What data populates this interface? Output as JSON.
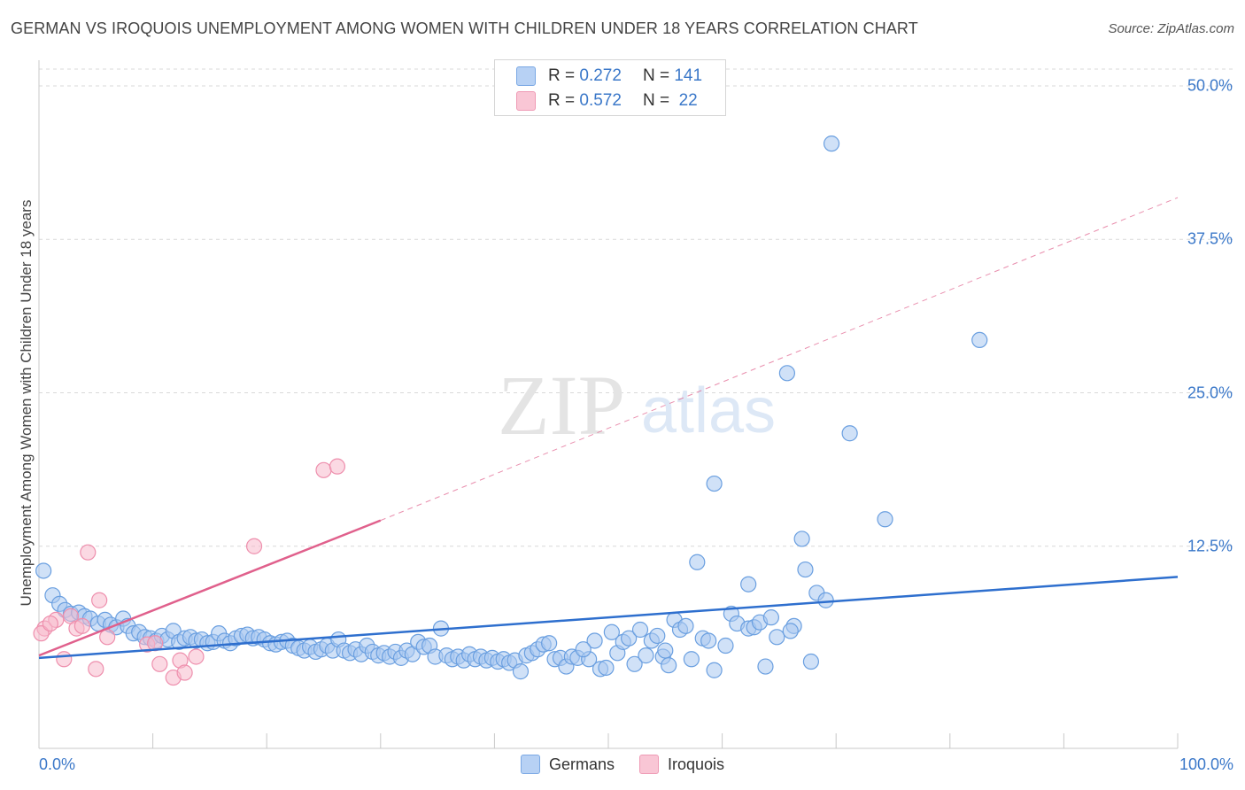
{
  "title": "GERMAN VS IROQUOIS UNEMPLOYMENT AMONG WOMEN WITH CHILDREN UNDER 18 YEARS CORRELATION CHART",
  "source": "Source: ZipAtlas.com",
  "watermark": {
    "zip": "ZIP",
    "atlas": "atlas"
  },
  "colors": {
    "germans_fill": "#a9c8f0",
    "germans_stroke": "#6a9fe0",
    "germans_line": "#2e6fce",
    "iroquois_fill": "#f7b9cc",
    "iroquois_stroke": "#ee8fad",
    "iroquois_line": "#e0608c",
    "grid": "#d9d9d9",
    "axis_text": "#3b78c9"
  },
  "legend": {
    "rows": [
      {
        "r_label": "R =",
        "r_value": "0.272",
        "n_label": "N =",
        "n_value": "141"
      },
      {
        "r_label": "R =",
        "r_value": "0.572",
        "n_label": "N =",
        "n_value": "22"
      }
    ]
  },
  "bottom_legend": [
    "Germans",
    "Iroquois"
  ],
  "chart_data": {
    "type": "scatter",
    "title": "GERMAN VS IROQUOIS UNEMPLOYMENT AMONG WOMEN WITH CHILDREN UNDER 18 YEARS CORRELATION CHART",
    "xlabel": "",
    "ylabel": "Unemployment Among Women with Children Under 18 years",
    "xlim": [
      0,
      100
    ],
    "ylim": [
      0,
      50
    ],
    "x_tick_labels": [
      "0.0%",
      "100.0%"
    ],
    "y_ticks": [
      12.5,
      25.0,
      37.5,
      50.0
    ],
    "y_tick_labels": [
      "12.5%",
      "25.0%",
      "37.5%",
      "50.0%"
    ],
    "grid": "horizontal dashed",
    "legend_position": "top-center",
    "series": [
      {
        "name": "Germans",
        "r": 0.272,
        "n": 141,
        "trend": {
          "x": [
            0,
            100
          ],
          "y": [
            3.4,
            10.0
          ],
          "style": "solid"
        },
        "points": [
          [
            0.4,
            10.5
          ],
          [
            1.2,
            8.5
          ],
          [
            1.8,
            7.8
          ],
          [
            2.3,
            7.3
          ],
          [
            2.8,
            7.0
          ],
          [
            3.5,
            7.1
          ],
          [
            4.0,
            6.8
          ],
          [
            4.5,
            6.6
          ],
          [
            5.2,
            6.2
          ],
          [
            5.8,
            6.5
          ],
          [
            6.3,
            6.1
          ],
          [
            6.8,
            5.9
          ],
          [
            7.4,
            6.6
          ],
          [
            7.8,
            6.0
          ],
          [
            8.3,
            5.4
          ],
          [
            8.8,
            5.5
          ],
          [
            9.3,
            5.1
          ],
          [
            9.8,
            5.0
          ],
          [
            10.3,
            4.8
          ],
          [
            10.8,
            5.2
          ],
          [
            11.3,
            4.9
          ],
          [
            11.8,
            5.6
          ],
          [
            12.3,
            4.7
          ],
          [
            12.8,
            5.0
          ],
          [
            13.3,
            5.1
          ],
          [
            13.8,
            4.8
          ],
          [
            14.3,
            4.9
          ],
          [
            14.8,
            4.6
          ],
          [
            15.3,
            4.7
          ],
          [
            15.8,
            5.4
          ],
          [
            16.3,
            4.8
          ],
          [
            16.8,
            4.6
          ],
          [
            17.3,
            5.0
          ],
          [
            17.8,
            5.2
          ],
          [
            18.3,
            5.3
          ],
          [
            18.8,
            5.0
          ],
          [
            19.3,
            5.1
          ],
          [
            19.8,
            4.9
          ],
          [
            20.3,
            4.6
          ],
          [
            20.8,
            4.5
          ],
          [
            21.3,
            4.7
          ],
          [
            21.8,
            4.8
          ],
          [
            22.3,
            4.4
          ],
          [
            22.8,
            4.2
          ],
          [
            23.3,
            4.0
          ],
          [
            23.8,
            4.3
          ],
          [
            24.3,
            3.9
          ],
          [
            24.8,
            4.1
          ],
          [
            25.3,
            4.4
          ],
          [
            25.8,
            4.0
          ],
          [
            26.3,
            4.9
          ],
          [
            26.8,
            4.0
          ],
          [
            27.3,
            3.8
          ],
          [
            27.8,
            4.1
          ],
          [
            28.3,
            3.7
          ],
          [
            28.8,
            4.4
          ],
          [
            29.3,
            3.9
          ],
          [
            29.8,
            3.6
          ],
          [
            30.3,
            3.8
          ],
          [
            30.8,
            3.5
          ],
          [
            31.3,
            3.9
          ],
          [
            31.8,
            3.4
          ],
          [
            32.3,
            4.0
          ],
          [
            32.8,
            3.7
          ],
          [
            33.3,
            4.7
          ],
          [
            33.8,
            4.3
          ],
          [
            34.3,
            4.4
          ],
          [
            34.8,
            3.5
          ],
          [
            35.3,
            5.8
          ],
          [
            35.8,
            3.6
          ],
          [
            36.3,
            3.3
          ],
          [
            36.8,
            3.5
          ],
          [
            37.3,
            3.2
          ],
          [
            37.8,
            3.7
          ],
          [
            38.3,
            3.3
          ],
          [
            38.8,
            3.5
          ],
          [
            39.3,
            3.2
          ],
          [
            39.8,
            3.4
          ],
          [
            40.3,
            3.1
          ],
          [
            40.8,
            3.3
          ],
          [
            41.3,
            3.0
          ],
          [
            41.8,
            3.2
          ],
          [
            42.3,
            2.3
          ],
          [
            42.8,
            3.6
          ],
          [
            43.3,
            3.8
          ],
          [
            43.8,
            4.1
          ],
          [
            44.3,
            4.5
          ],
          [
            44.8,
            4.6
          ],
          [
            45.3,
            3.3
          ],
          [
            45.8,
            3.4
          ],
          [
            46.3,
            2.7
          ],
          [
            46.8,
            3.5
          ],
          [
            47.3,
            3.4
          ],
          [
            48.3,
            3.3
          ],
          [
            48.8,
            4.8
          ],
          [
            49.3,
            2.5
          ],
          [
            49.8,
            2.6
          ],
          [
            50.3,
            5.5
          ],
          [
            50.8,
            3.8
          ],
          [
            51.3,
            4.7
          ],
          [
            51.8,
            5.0
          ],
          [
            52.3,
            2.9
          ],
          [
            52.8,
            5.7
          ],
          [
            53.3,
            3.6
          ],
          [
            53.8,
            4.8
          ],
          [
            54.3,
            5.2
          ],
          [
            54.8,
            3.5
          ],
          [
            55.3,
            2.8
          ],
          [
            55.8,
            6.5
          ],
          [
            56.3,
            5.7
          ],
          [
            56.8,
            6.0
          ],
          [
            57.3,
            3.3
          ],
          [
            58.3,
            5.0
          ],
          [
            58.8,
            4.8
          ],
          [
            59.3,
            2.4
          ],
          [
            60.3,
            4.4
          ],
          [
            60.8,
            7.0
          ],
          [
            61.3,
            6.2
          ],
          [
            62.3,
            5.8
          ],
          [
            62.8,
            5.9
          ],
          [
            63.3,
            6.3
          ],
          [
            63.8,
            2.7
          ],
          [
            64.3,
            6.7
          ],
          [
            64.8,
            5.1
          ],
          [
            66.3,
            6.0
          ],
          [
            67.3,
            10.6
          ],
          [
            67.8,
            3.1
          ],
          [
            68.3,
            8.7
          ],
          [
            69.1,
            8.1
          ],
          [
            67.0,
            13.1
          ],
          [
            62.3,
            9.4
          ],
          [
            57.8,
            11.2
          ],
          [
            59.3,
            17.6
          ],
          [
            74.3,
            14.7
          ],
          [
            71.2,
            21.7
          ],
          [
            65.7,
            26.6
          ],
          [
            82.6,
            29.3
          ],
          [
            69.6,
            45.3
          ],
          [
            66.0,
            5.6
          ],
          [
            55.0,
            4.0
          ],
          [
            47.8,
            4.1
          ]
        ]
      },
      {
        "name": "Iroquois",
        "r": 0.572,
        "n": 22,
        "trend": {
          "x": [
            0,
            30
          ],
          "y": [
            3.6,
            14.6
          ],
          "style": "solid",
          "extension_x": [
            30,
            100
          ],
          "extension_y": [
            14.6,
            40.9
          ],
          "extension_style": "dashed"
        },
        "points": [
          [
            0.5,
            5.8
          ],
          [
            1.5,
            6.5
          ],
          [
            2.2,
            3.3
          ],
          [
            2.8,
            6.8
          ],
          [
            3.3,
            5.8
          ],
          [
            3.8,
            6.0
          ],
          [
            4.3,
            12.0
          ],
          [
            5.0,
            2.5
          ],
          [
            5.3,
            8.1
          ],
          [
            6.0,
            5.1
          ],
          [
            9.5,
            4.5
          ],
          [
            10.2,
            4.6
          ],
          [
            10.6,
            2.9
          ],
          [
            11.8,
            1.8
          ],
          [
            12.4,
            3.2
          ],
          [
            12.8,
            2.2
          ],
          [
            13.8,
            3.5
          ],
          [
            18.9,
            12.5
          ],
          [
            25.0,
            18.7
          ],
          [
            26.2,
            19.0
          ],
          [
            0.2,
            5.4
          ],
          [
            1.0,
            6.2
          ]
        ]
      }
    ]
  }
}
